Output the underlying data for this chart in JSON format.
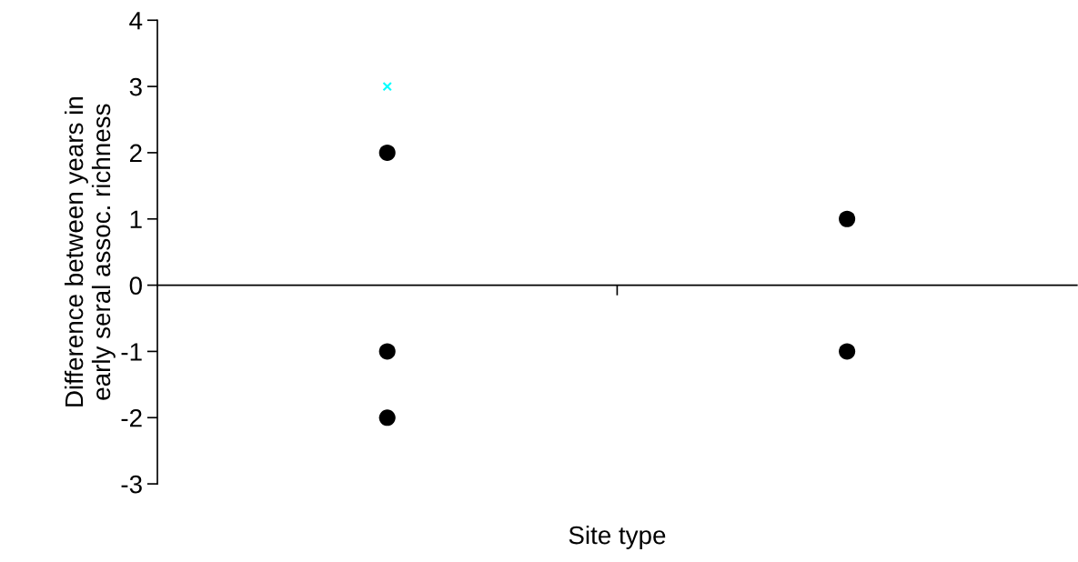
{
  "chart_data": {
    "type": "scatter",
    "xlabel": "Site type",
    "ylabel": "Difference between years in\nearly seral assoc. richness",
    "categories": [
      null,
      null
    ],
    "series": [
      {
        "color": "#000000",
        "marker": "circle",
        "values": [
          2,
          1
        ]
      },
      {
        "color": "#000000",
        "marker": "circle",
        "values": [
          -1,
          -1
        ]
      },
      {
        "color": "#000000",
        "marker": "circle",
        "values": [
          -2,
          null
        ]
      },
      {
        "color": "#00ffff",
        "marker": "cross",
        "values": [
          3,
          null
        ]
      }
    ],
    "ylim": [
      -3,
      4
    ],
    "yticks": [
      -3,
      -2,
      -1,
      0,
      1,
      2,
      3,
      4
    ],
    "legend": false
  }
}
